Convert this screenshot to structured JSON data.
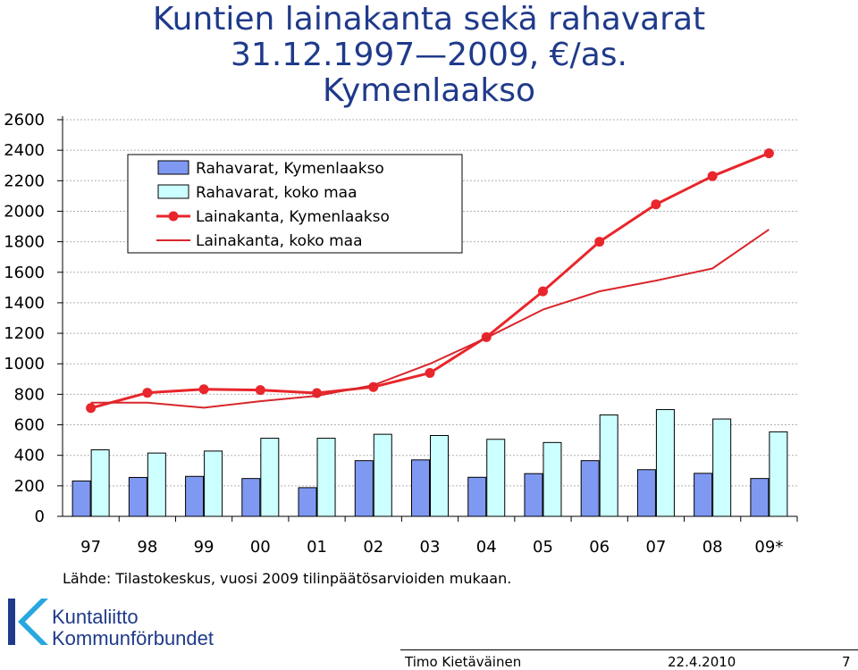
{
  "chart_data": {
    "type": "bar+line",
    "title": [
      "Kuntien lainakanta sekä rahavarat",
      "31.12.1997—2009, €/as.",
      "Kymenlaakso"
    ],
    "categories": [
      "97",
      "98",
      "99",
      "00",
      "01",
      "02",
      "03",
      "04",
      "05",
      "06",
      "07",
      "08",
      "09*"
    ],
    "ylim": [
      0,
      2600
    ],
    "yticks": [
      0,
      200,
      400,
      600,
      800,
      1000,
      1200,
      1400,
      1600,
      1800,
      2000,
      2200,
      2400,
      2600
    ],
    "grid": true,
    "legend_position": "top-left",
    "series": [
      {
        "name": "Rahavarat, Kymenlaakso",
        "kind": "bar",
        "color": "#7f99f2",
        "values": [
          232,
          255,
          262,
          248,
          188,
          365,
          370,
          256,
          280,
          365,
          306,
          282,
          248
        ]
      },
      {
        "name": "Rahavarat, koko maa",
        "kind": "bar",
        "color": "#ccffff",
        "values": [
          436,
          415,
          428,
          512,
          512,
          538,
          530,
          505,
          484,
          665,
          700,
          638,
          554
        ]
      },
      {
        "name": "Lainakanta, Kymenlaakso",
        "kind": "line-marker",
        "color": "#e8262b",
        "values": [
          710,
          810,
          833,
          828,
          808,
          848,
          940,
          1175,
          1475,
          1800,
          2045,
          2230,
          2380
        ]
      },
      {
        "name": "Lainakanta, koko maa",
        "kind": "line",
        "color": "#d9262b",
        "values": [
          745,
          745,
          712,
          755,
          790,
          860,
          1000,
          1170,
          1355,
          1475,
          1545,
          1625,
          1880
        ]
      }
    ]
  },
  "source_text": "Lähde: Tilastokeskus, vuosi 2009 tilinpäätösarvioiden mukaan.",
  "logo": {
    "line1": "Kuntaliitto",
    "line2": "Kommunförbundet",
    "color": "#1f3a8a"
  },
  "footer": {
    "author": "Timo Kietäväinen",
    "date": "22.4.2010",
    "page": "7"
  }
}
